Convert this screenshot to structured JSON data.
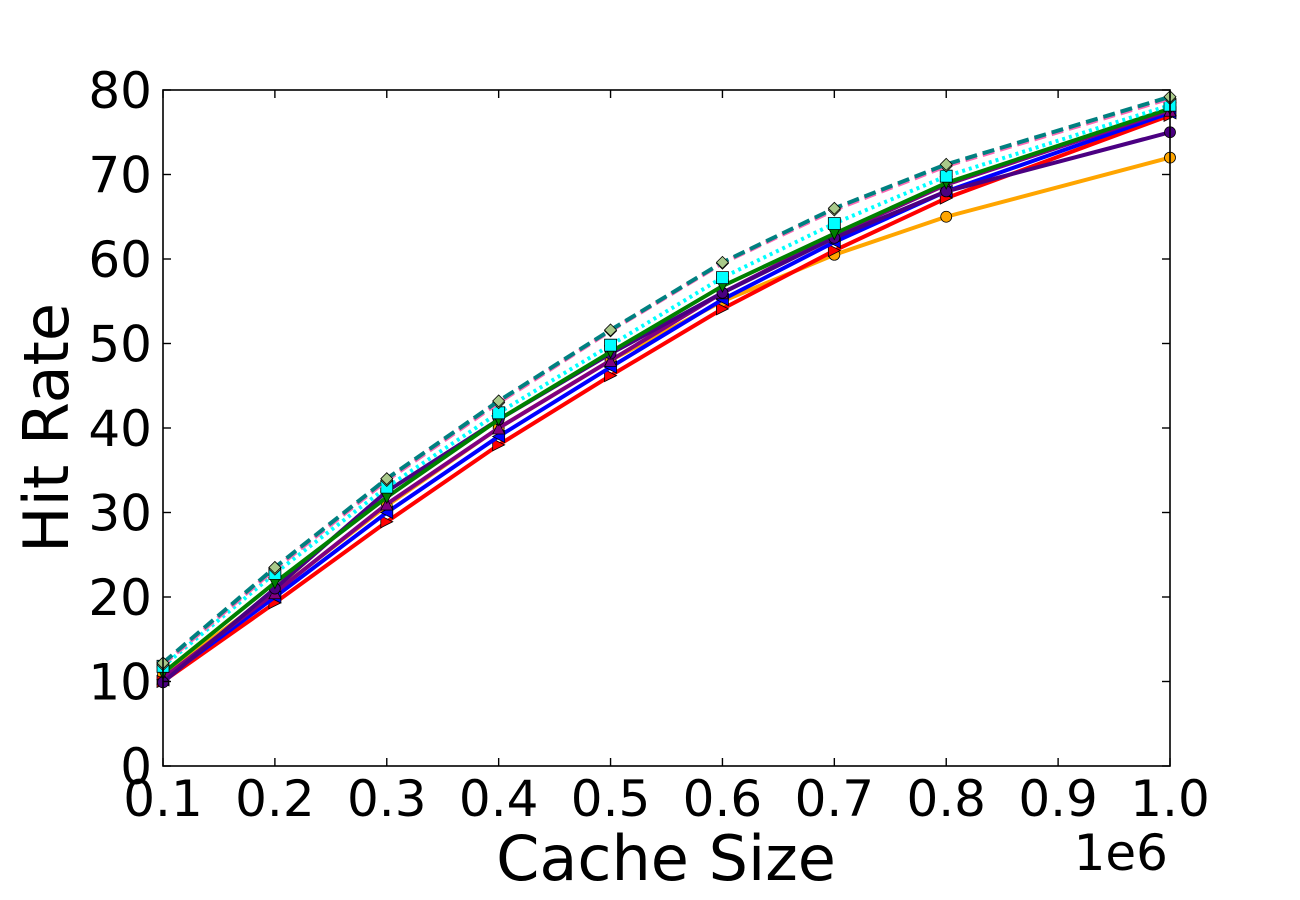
{
  "chart_data": {
    "type": "line",
    "title": "",
    "xlabel": "Cache Size",
    "ylabel": "Hit Rate",
    "x_offset_label": "1e6",
    "xlim": [
      0.1,
      1.0
    ],
    "ylim": [
      0,
      80
    ],
    "x_ticks": [
      0.1,
      0.2,
      0.3,
      0.4,
      0.5,
      0.6,
      0.7,
      0.8,
      0.9,
      1.0
    ],
    "x_tick_labels": [
      "0.1",
      "0.2",
      "0.3",
      "0.4",
      "0.5",
      "0.6",
      "0.7",
      "0.8",
      "0.9",
      "1.0"
    ],
    "y_ticks": [
      0,
      10,
      20,
      30,
      40,
      50,
      60,
      70,
      80
    ],
    "y_tick_labels": [
      "0",
      "10",
      "20",
      "30",
      "40",
      "50",
      "60",
      "70",
      "80"
    ],
    "grid": false,
    "legend": "none",
    "x": [
      0.1,
      0.2,
      0.3,
      0.4,
      0.5,
      0.6,
      0.7,
      0.8,
      1.0
    ],
    "series": [
      {
        "color": "#ffa500",
        "marker": "circle",
        "dash": "solid",
        "values": [
          10.8,
          20.6,
          30.8,
          40.0,
          48.0,
          55.0,
          60.5,
          65.0,
          72.0
        ]
      },
      {
        "color": "#ff0000",
        "marker": "triangle-right",
        "dash": "solid",
        "values": [
          10.0,
          19.3,
          28.9,
          38.0,
          46.2,
          54.1,
          61.0,
          67.2,
          77.0
        ]
      },
      {
        "color": "#0000ff",
        "marker": "triangle-left",
        "dash": "solid",
        "values": [
          10.2,
          20.0,
          30.0,
          39.0,
          47.2,
          55.2,
          62.0,
          68.0,
          77.3
        ]
      },
      {
        "color": "#800080",
        "marker": "triangle-up",
        "dash": "solid",
        "values": [
          10.4,
          20.5,
          31.0,
          40.0,
          48.0,
          56.0,
          62.8,
          68.8,
          77.6
        ]
      },
      {
        "color": "#4b0082",
        "marker": "circle",
        "dash": "solid",
        "values": [
          9.9,
          21.0,
          32.5,
          41.0,
          48.8,
          56.0,
          62.5,
          68.0,
          75.0
        ]
      },
      {
        "color": "#008000",
        "marker": "triangle-down",
        "dash": "solid",
        "values": [
          11.0,
          21.7,
          31.8,
          41.0,
          49.0,
          56.8,
          63.0,
          69.0,
          77.8
        ]
      },
      {
        "color": "#00ffff",
        "marker": "square",
        "dash": "dotted",
        "values": [
          11.8,
          22.8,
          33.0,
          41.8,
          49.8,
          57.8,
          64.2,
          69.8,
          78.2
        ]
      },
      {
        "color": "#ff69b4",
        "marker": "diamond",
        "dash": "dashed",
        "values": [
          12.0,
          23.3,
          33.8,
          43.0,
          51.5,
          59.5,
          65.8,
          71.0,
          79.0
        ]
      },
      {
        "color": "#008080",
        "marker": "diamond",
        "dash": "dashed",
        "values": [
          12.2,
          23.5,
          34.0,
          43.2,
          51.6,
          59.6,
          66.0,
          71.2,
          79.2
        ]
      }
    ]
  }
}
